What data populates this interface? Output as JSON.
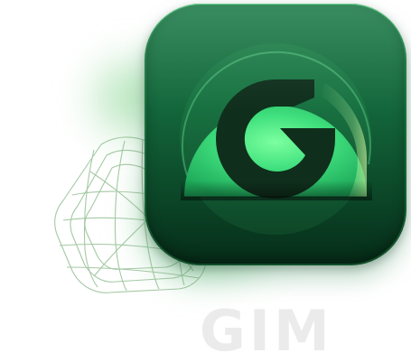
{
  "brand": {
    "name": "GIM",
    "colors": {
      "icon_top": "#23804e",
      "icon_bottom": "#062c18",
      "logo_ring": "#3ee882",
      "logo_mark": "#0f2f1c",
      "wire": "#9bc39b",
      "wordmark": "#ebebeb"
    }
  },
  "icons": {
    "app_icon": "gim-app-icon",
    "logo_mark": "g-logo-icon",
    "wireframe": "wireframe-outline-icon"
  }
}
